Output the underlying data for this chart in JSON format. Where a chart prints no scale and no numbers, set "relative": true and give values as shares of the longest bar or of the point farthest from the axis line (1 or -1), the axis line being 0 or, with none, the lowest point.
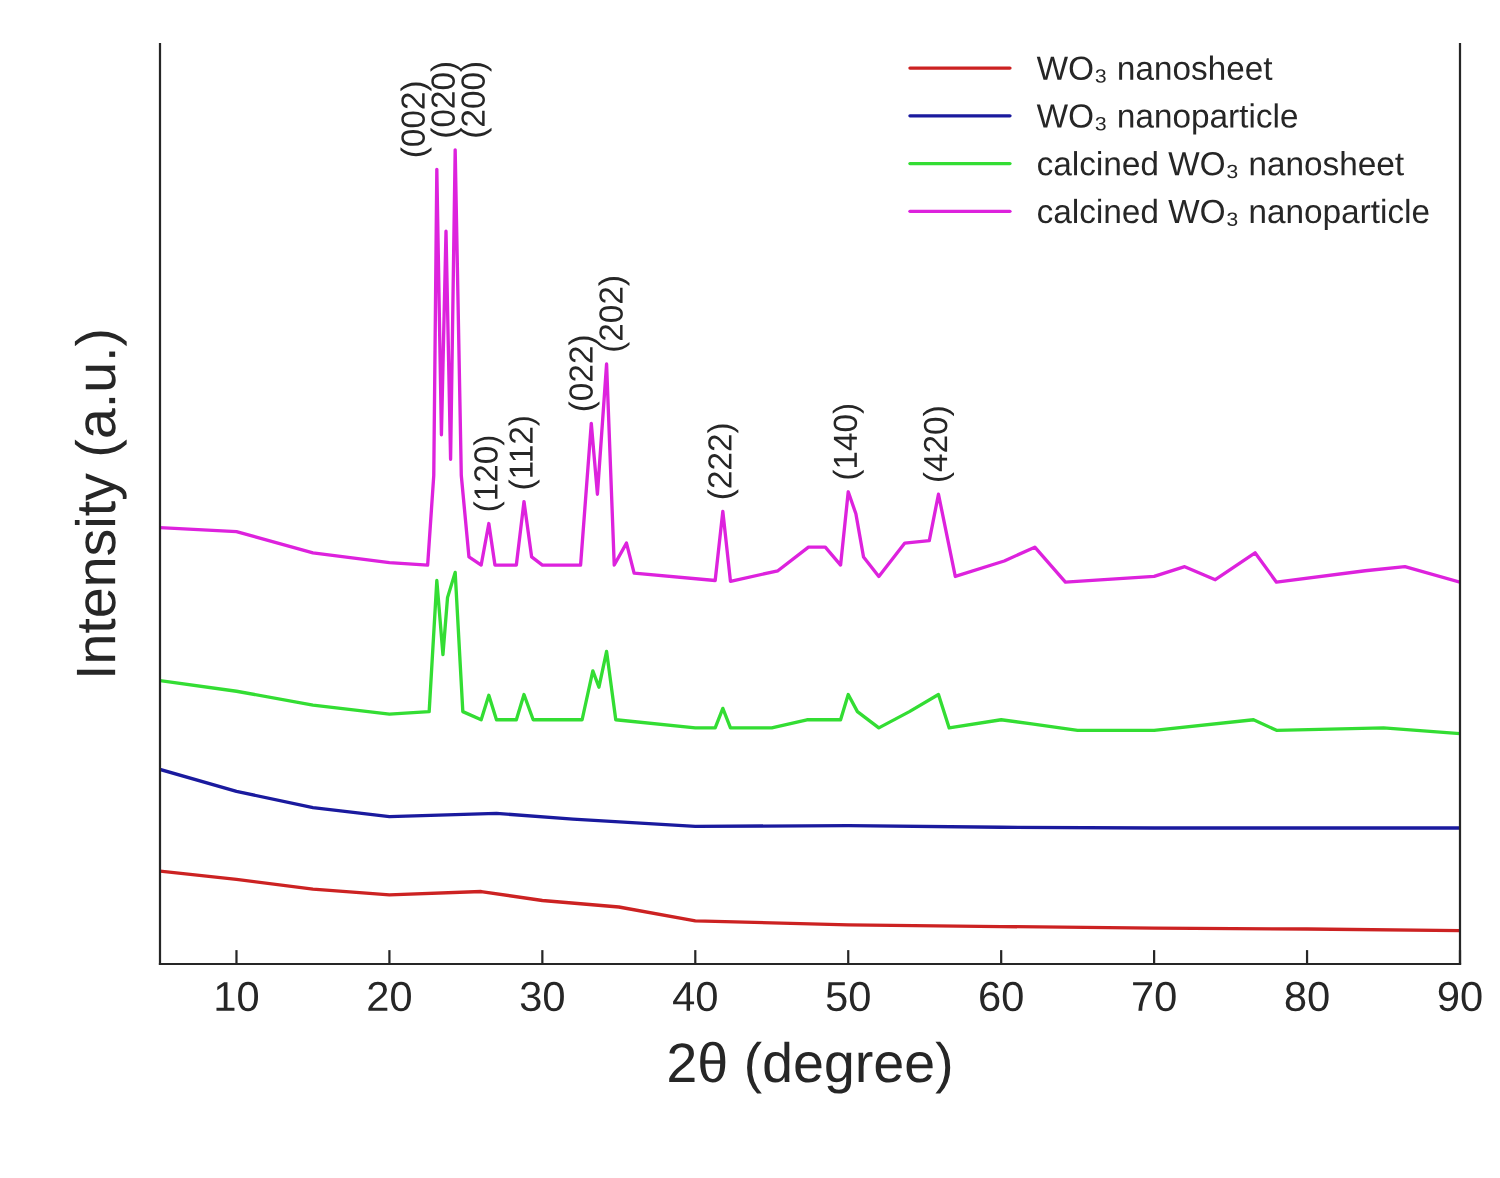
{
  "chart_data": {
    "type": "line",
    "relative": true,
    "xlabel": "2θ (degree)",
    "ylabel": "Intensity (a.u.)",
    "xlim": [
      5,
      90
    ],
    "xticks": [
      10,
      20,
      30,
      40,
      50,
      60,
      70,
      80,
      90
    ],
    "grid": false,
    "legend": "top right",
    "tick_labels": "x",
    "line_style": "solid",
    "marker": "none",
    "series": [
      {
        "name": "WO₃ nanosheet",
        "color": "#cc2222",
        "x": [
          5,
          10,
          15,
          20,
          26,
          30,
          35,
          40,
          50,
          60,
          70,
          80,
          90
        ],
        "values": [
          0.114,
          0.104,
          0.092,
          0.085,
          0.089,
          0.078,
          0.07,
          0.053,
          0.048,
          0.046,
          0.044,
          0.043,
          0.041
        ]
      },
      {
        "name": "WO₃ nanoparticle",
        "color": "#1a1a9e",
        "x": [
          5,
          10,
          15,
          20,
          27,
          32,
          40,
          50,
          60,
          70,
          80,
          90
        ],
        "values": [
          0.239,
          0.212,
          0.192,
          0.181,
          0.185,
          0.178,
          0.169,
          0.17,
          0.168,
          0.167,
          0.167,
          0.167
        ]
      },
      {
        "name": "calcined WO₃ nanosheet",
        "color": "#33dd33",
        "x": [
          5,
          10,
          15,
          20,
          22.6,
          23.1,
          23.5,
          23.8,
          24.3,
          24.8,
          26.0,
          26.5,
          27.0,
          28.3,
          28.8,
          29.4,
          32.6,
          33.3,
          33.7,
          34.2,
          34.8,
          40,
          41.3,
          41.8,
          42.3,
          45,
          47.3,
          48.5,
          49.5,
          50.0,
          50.6,
          52,
          54,
          55.9,
          56.6,
          60,
          62,
          65,
          70,
          76.5,
          78,
          85,
          90
        ],
        "values": [
          0.348,
          0.335,
          0.318,
          0.307,
          0.31,
          0.471,
          0.38,
          0.45,
          0.481,
          0.31,
          0.3,
          0.33,
          0.3,
          0.3,
          0.331,
          0.3,
          0.3,
          0.36,
          0.34,
          0.384,
          0.3,
          0.29,
          0.29,
          0.314,
          0.29,
          0.29,
          0.3,
          0.3,
          0.3,
          0.331,
          0.31,
          0.29,
          0.31,
          0.331,
          0.29,
          0.3,
          0.295,
          0.287,
          0.287,
          0.3,
          0.287,
          0.29,
          0.283
        ]
      },
      {
        "name": "calcined WO₃ nanoparticle",
        "color": "#dd22dd",
        "x": [
          5,
          10,
          15,
          20,
          22.5,
          22.9,
          23.1,
          23.4,
          23.7,
          24.0,
          24.3,
          24.7,
          25.2,
          26.0,
          26.5,
          26.9,
          28.3,
          28.8,
          29.3,
          30,
          32.5,
          33.2,
          33.6,
          34.2,
          34.7,
          35.5,
          36,
          41.3,
          41.8,
          42.3,
          45.4,
          47.4,
          48.5,
          49.5,
          50.0,
          50.5,
          51,
          52,
          53.7,
          55.3,
          55.9,
          57,
          60.2,
          62.2,
          64.2,
          70,
          72,
          74,
          76.6,
          78,
          83.8,
          86.4,
          90
        ],
        "values": [
          0.536,
          0.531,
          0.505,
          0.493,
          0.49,
          0.6,
          0.976,
          0.65,
          0.9,
          0.62,
          1.0,
          0.6,
          0.5,
          0.49,
          0.541,
          0.49,
          0.49,
          0.568,
          0.5,
          0.49,
          0.49,
          0.664,
          0.577,
          0.737,
          0.49,
          0.517,
          0.48,
          0.471,
          0.556,
          0.47,
          0.483,
          0.512,
          0.512,
          0.49,
          0.58,
          0.553,
          0.5,
          0.476,
          0.517,
          0.52,
          0.577,
          0.476,
          0.495,
          0.512,
          0.469,
          0.476,
          0.488,
          0.472,
          0.505,
          0.469,
          0.483,
          0.488,
          0.469
        ]
      }
    ],
    "annotations": [
      {
        "text": "(002)",
        "x": 23.1,
        "y": 0.976
      },
      {
        "text": "(020)",
        "x": 23.7,
        "y": 1.0
      },
      {
        "text": "(200)",
        "x": 24.3,
        "y": 1.0
      },
      {
        "text": "(120)",
        "x": 26.5,
        "y": 0.541
      },
      {
        "text": "(112)",
        "x": 28.8,
        "y": 0.568
      },
      {
        "text": "(022)",
        "x": 33.2,
        "y": 0.664
      },
      {
        "text": "(202)",
        "x": 34.2,
        "y": 0.737
      },
      {
        "text": "(222)",
        "x": 41.8,
        "y": 0.556
      },
      {
        "text": "(140)",
        "x": 50.0,
        "y": 0.58
      },
      {
        "text": "(420)",
        "x": 55.9,
        "y": 0.577
      }
    ]
  }
}
